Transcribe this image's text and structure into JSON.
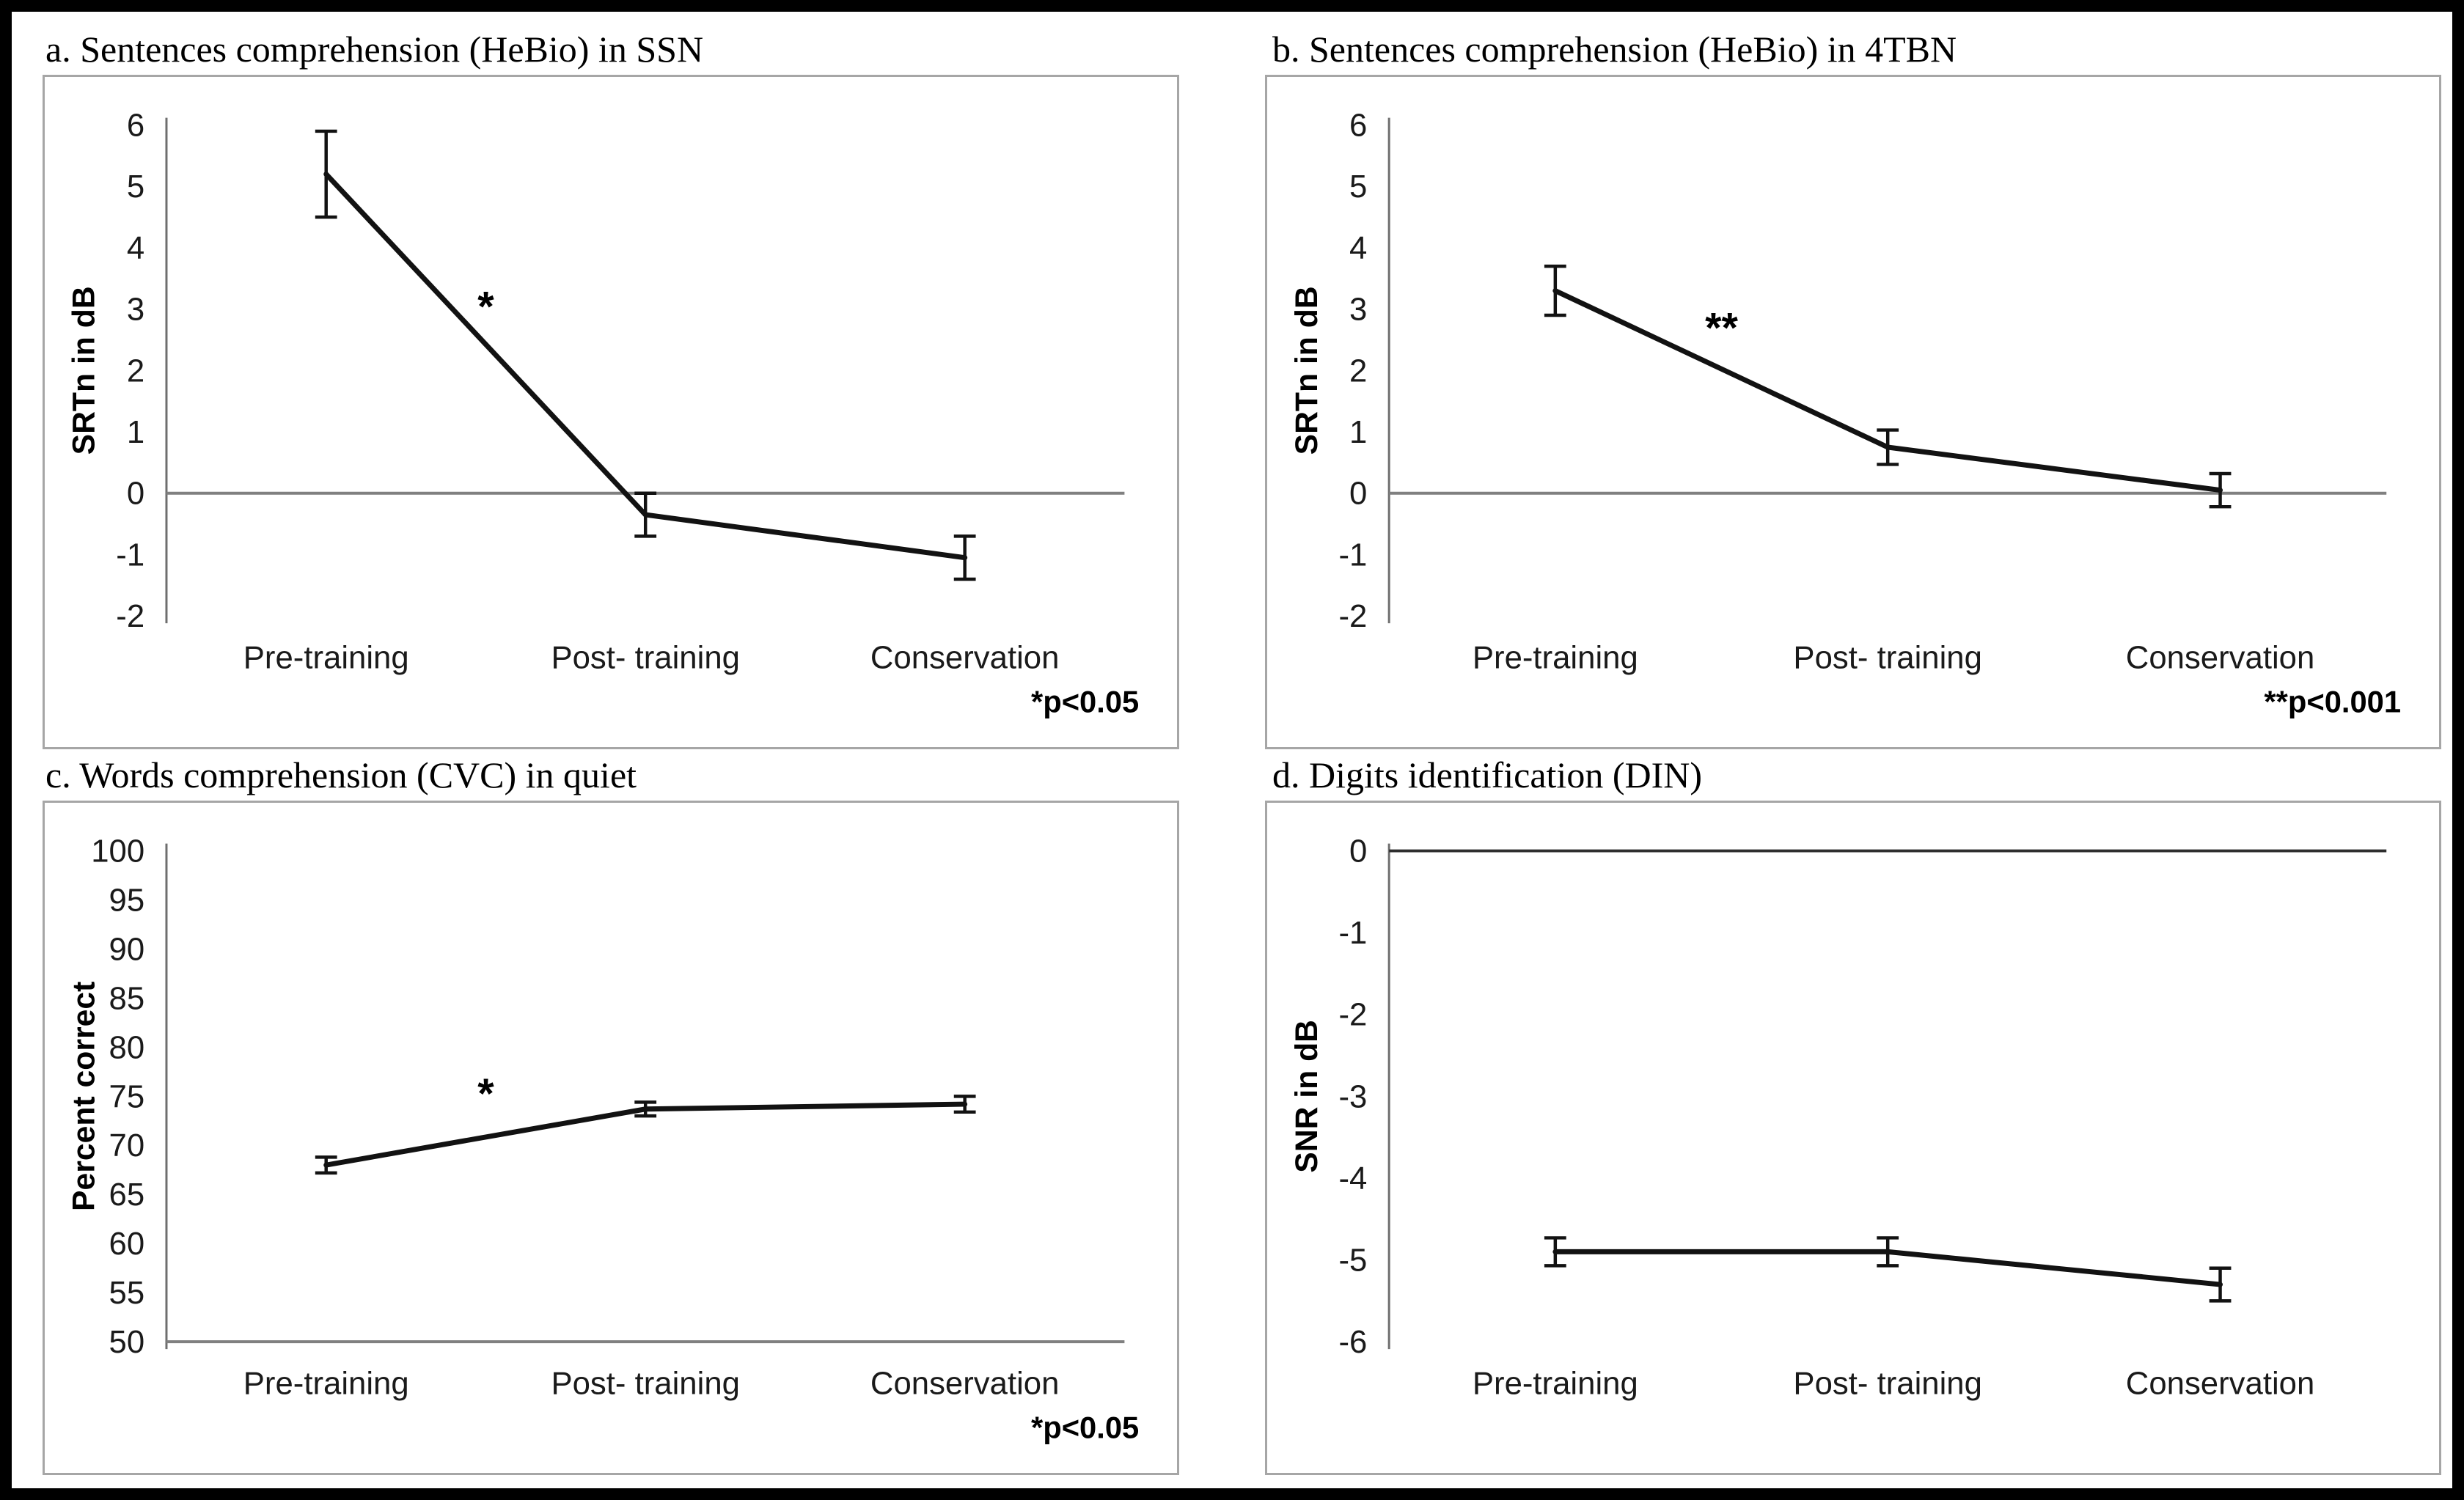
{
  "figure": {
    "background": "#ffffff",
    "border_color": "#000000"
  },
  "colors": {
    "series_line": "#121212",
    "error_bar": "#121212",
    "axis_line": "#6e6e6e",
    "baseline_gray": "#808080",
    "baseline_dark": "#2e2e2e",
    "box_border": "#a6a6a6",
    "text": "#1a1a1a"
  },
  "chart_data": [
    {
      "panel": "a",
      "type": "line",
      "title": "a. Sentences comprehension (HeBio) in SSN",
      "ylabel": "SRTn in dB",
      "xlabel": "",
      "ylim": [
        -2,
        6
      ],
      "yticks": [
        6,
        5,
        4,
        3,
        2,
        1,
        0,
        -1,
        -2
      ],
      "categories": [
        "Pre-training",
        "Post- training",
        "Conservation"
      ],
      "values": [
        5.2,
        -0.35,
        -1.05
      ],
      "errors": [
        0.7,
        0.35,
        0.35
      ],
      "baseline": {
        "value": 0,
        "style": "gray"
      },
      "significance": {
        "text": "*",
        "y": 3.05,
        "between": [
          0,
          1
        ]
      },
      "footnote": "*p<0.05",
      "grid": false,
      "legend": null
    },
    {
      "panel": "b",
      "type": "line",
      "title": "b. Sentences comprehension (HeBio) in 4TBN",
      "ylabel": "SRTn in dB",
      "xlabel": "",
      "ylim": [
        -2,
        6
      ],
      "yticks": [
        6,
        5,
        4,
        3,
        2,
        1,
        0,
        -1,
        -2
      ],
      "categories": [
        "Pre-training",
        "Post- training",
        "Conservation"
      ],
      "values": [
        3.3,
        0.75,
        0.05
      ],
      "errors": [
        0.4,
        0.28,
        0.27
      ],
      "baseline": {
        "value": 0,
        "style": "gray"
      },
      "significance": {
        "text": "**",
        "y": 2.7,
        "between": [
          0,
          1
        ]
      },
      "footnote": "**p<0.001",
      "grid": false,
      "legend": null
    },
    {
      "panel": "c",
      "type": "line",
      "title": "c. Words comprehension (CVC) in quiet",
      "ylabel": "Percent correct",
      "xlabel": "",
      "ylim": [
        50,
        100
      ],
      "yticks": [
        100,
        95,
        90,
        85,
        80,
        75,
        70,
        65,
        60,
        55,
        50
      ],
      "categories": [
        "Pre-training",
        "Post- training",
        "Conservation"
      ],
      "values": [
        68,
        73.7,
        74.2
      ],
      "errors": [
        0.8,
        0.7,
        0.8
      ],
      "baseline": {
        "value": 50,
        "style": "gray"
      },
      "significance": {
        "text": "*",
        "y": 75.3,
        "between": [
          0,
          1
        ]
      },
      "footnote": "*p<0.05",
      "grid": false,
      "legend": null
    },
    {
      "panel": "d",
      "type": "line",
      "title": "d. Digits identification (DIN)",
      "ylabel": "SNR in dB",
      "xlabel": "",
      "ylim": [
        -6,
        0
      ],
      "yticks": [
        0,
        -1,
        -2,
        -3,
        -4,
        -5,
        -6
      ],
      "categories": [
        "Pre-training",
        "Post- training",
        "Conservation"
      ],
      "values": [
        -4.9,
        -4.9,
        -5.3
      ],
      "errors": [
        0.17,
        0.17,
        0.2
      ],
      "baseline": {
        "value": 0,
        "style": "dark"
      },
      "significance": null,
      "footnote": null,
      "grid": false,
      "legend": null
    }
  ]
}
